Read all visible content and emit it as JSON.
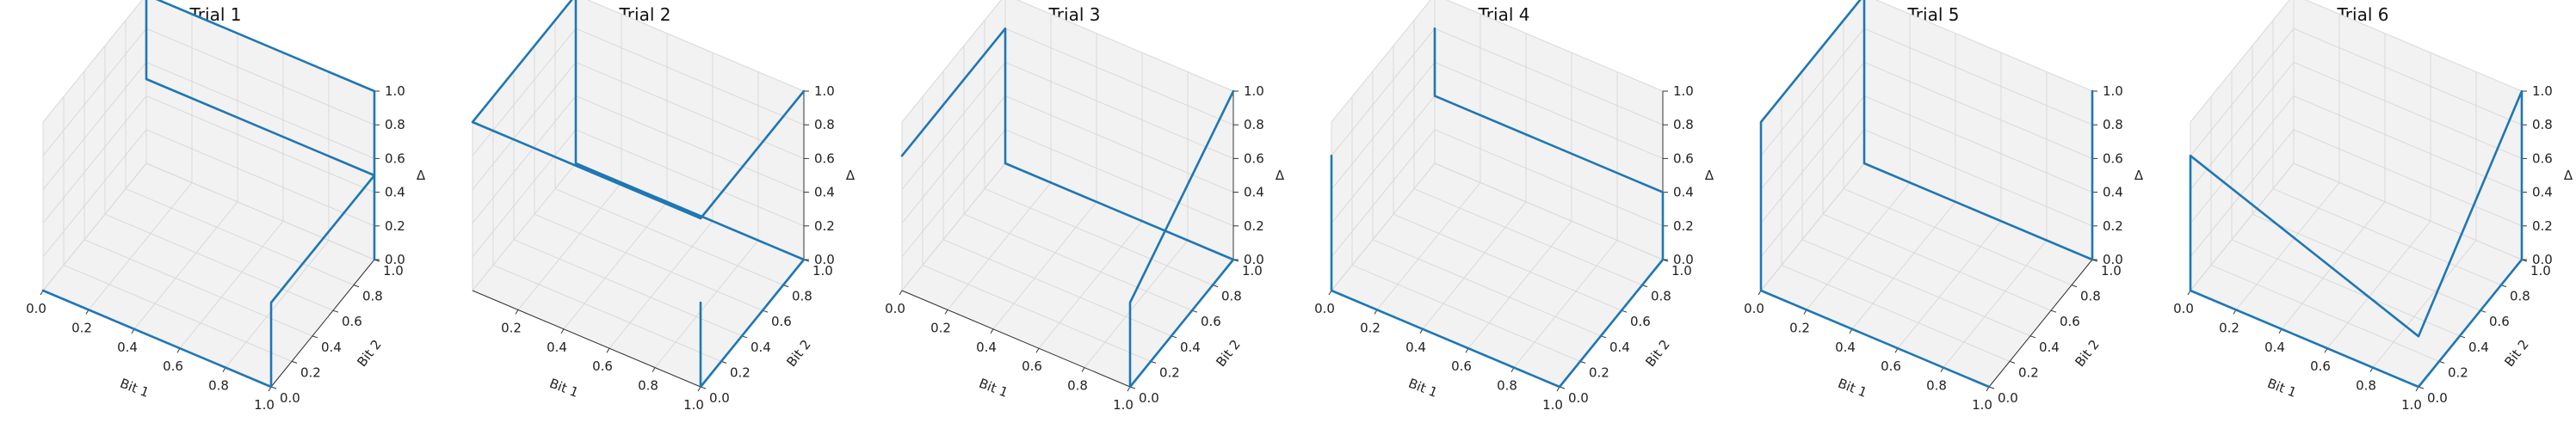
{
  "chart_data": [
    {
      "type": "line3d",
      "title": "Trial 1",
      "xlabel": "Bit 1",
      "ylabel": "Bit 2",
      "zlabel": "Δ",
      "xlim": [
        0,
        1
      ],
      "ylim": [
        0,
        1
      ],
      "zlim": [
        0,
        1
      ],
      "x_ticks": [
        "0.0",
        "0.2",
        "0.4",
        "0.6",
        "0.8",
        "1.0"
      ],
      "y_ticks": [
        "0.0",
        "0.2",
        "0.4",
        "0.6",
        "0.8",
        "1.0"
      ],
      "z_ticks": [
        "0.0",
        "0.2",
        "0.4",
        "0.6",
        "0.8",
        "1.0"
      ],
      "grid": true,
      "series": [
        {
          "x": [
            0,
            1,
            1,
            1,
            0,
            0,
            1,
            1
          ],
          "y": [
            0,
            0,
            0,
            1,
            1,
            1,
            1,
            1
          ],
          "z": [
            0,
            0,
            0.5,
            0.5,
            0.5,
            1,
            1,
            0
          ]
        }
      ]
    },
    {
      "type": "line3d",
      "title": "Trial 2",
      "xlabel": "Bit 1",
      "ylabel": "Bit 2",
      "zlabel": "Δ",
      "xlim": [
        0,
        1
      ],
      "ylim": [
        0,
        1
      ],
      "zlim": [
        0,
        1
      ],
      "x_ticks": [
        "0.2",
        "0.4",
        "0.6",
        "0.8",
        "1.0"
      ],
      "y_ticks": [
        "0.0",
        "0.2",
        "0.4",
        "0.6",
        "0.8",
        "1.0"
      ],
      "z_ticks": [
        "0.0",
        "0.2",
        "0.4",
        "0.6",
        "0.8",
        "1.0"
      ],
      "grid": true,
      "series": [
        {
          "x": [
            1,
            1,
            1,
            0,
            0,
            0,
            1,
            1
          ],
          "y": [
            0,
            0,
            1,
            1,
            1,
            0,
            0,
            1
          ],
          "z": [
            0.5,
            0,
            0,
            0,
            1,
            1,
            1,
            1
          ]
        }
      ]
    },
    {
      "type": "line3d",
      "title": "Trial 3",
      "xlabel": "Bit 1",
      "ylabel": "Bit 2",
      "zlabel": "Δ",
      "xlim": [
        0,
        1
      ],
      "ylim": [
        0,
        1
      ],
      "zlim": [
        0,
        1
      ],
      "x_ticks": [
        "0.0",
        "0.2",
        "0.4",
        "0.6",
        "0.8",
        "1.0"
      ],
      "y_ticks": [
        "0.0",
        "0.2",
        "0.4",
        "0.6",
        "0.8",
        "1.0"
      ],
      "z_ticks": [
        "0.0",
        "0.2",
        "0.4",
        "0.6",
        "0.8",
        "1.0"
      ],
      "grid": true,
      "series": [
        {
          "x": [
            0,
            0,
            0,
            1,
            1,
            1,
            1
          ],
          "y": [
            0,
            1,
            1,
            1,
            0,
            0,
            1
          ],
          "z": [
            0.8,
            0.8,
            0,
            0,
            0,
            0.5,
            1
          ]
        }
      ]
    },
    {
      "type": "line3d",
      "title": "Trial 4",
      "xlabel": "Bit 1",
      "ylabel": "Bit 2",
      "zlabel": "Δ",
      "xlim": [
        0,
        1
      ],
      "ylim": [
        0,
        1
      ],
      "zlim": [
        0,
        1
      ],
      "x_ticks": [
        "0.0",
        "0.2",
        "0.4",
        "0.6",
        "0.8",
        "1.0"
      ],
      "y_ticks": [
        "0.0",
        "0.2",
        "0.4",
        "0.6",
        "0.8",
        "1.0"
      ],
      "z_ticks": [
        "0.0",
        "0.2",
        "0.4",
        "0.6",
        "0.8",
        "1.0"
      ],
      "grid": true,
      "series": [
        {
          "x": [
            0,
            0,
            1,
            1,
            1,
            0,
            0
          ],
          "y": [
            0,
            0,
            0,
            1,
            1,
            1,
            1
          ],
          "z": [
            0.8,
            0,
            0,
            0,
            0.4,
            0.4,
            0.8
          ]
        }
      ]
    },
    {
      "type": "line3d",
      "title": "Trial 5",
      "xlabel": "Bit 1",
      "ylabel": "Bit 2",
      "zlabel": "Δ",
      "xlim": [
        0,
        1
      ],
      "ylim": [
        0,
        1
      ],
      "zlim": [
        0,
        1
      ],
      "x_ticks": [
        "0.0",
        "0.2",
        "0.4",
        "0.6",
        "0.8",
        "1.0"
      ],
      "y_ticks": [
        "0.0",
        "0.2",
        "0.4",
        "0.6",
        "0.8",
        "1.0"
      ],
      "z_ticks": [
        "0.0",
        "0.2",
        "0.4",
        "0.6",
        "0.8",
        "1.0"
      ],
      "grid": true,
      "series": [
        {
          "x": [
            1,
            0,
            0,
            0,
            0,
            0,
            0,
            1,
            1
          ],
          "y": [
            0,
            0,
            0,
            0,
            0,
            1,
            1,
            1,
            1
          ],
          "z": [
            0,
            0,
            0.8,
            0.8,
            1,
            1,
            0,
            0,
            1
          ]
        }
      ]
    },
    {
      "type": "line3d",
      "title": "Trial 6",
      "xlabel": "Bit 1",
      "ylabel": "Bit 2",
      "zlabel": "Δ",
      "xlim": [
        0,
        1
      ],
      "ylim": [
        0,
        1
      ],
      "zlim": [
        0,
        1
      ],
      "x_ticks": [
        "0.0",
        "0.2",
        "0.4",
        "0.6",
        "0.8",
        "1.0"
      ],
      "y_ticks": [
        "0.0",
        "0.2",
        "0.4",
        "0.6",
        "0.8",
        "1.0"
      ],
      "z_ticks": [
        "0.0",
        "0.2",
        "0.4",
        "0.6",
        "0.8",
        "1.0"
      ],
      "grid": true,
      "series": [
        {
          "x": [
            0,
            0,
            1,
            1,
            1,
            1,
            0
          ],
          "y": [
            0,
            0,
            0,
            1,
            1,
            0,
            0
          ],
          "z": [
            0.8,
            0,
            0,
            0,
            1,
            0.3,
            0.8
          ]
        }
      ]
    }
  ],
  "colors": {
    "line": "#1f77b4",
    "pane": "#f2f2f2",
    "grid": "#d9d9d9",
    "axis": "#333333"
  }
}
